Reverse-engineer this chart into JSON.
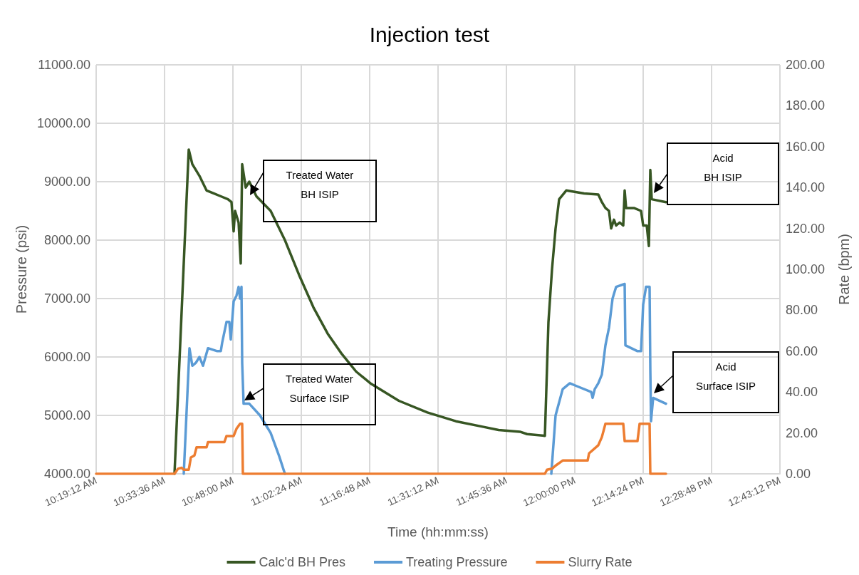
{
  "chart_data": {
    "type": "line",
    "title": "Injection test",
    "xlabel": "Time (hh:mm:ss)",
    "ylabel": "Pressure (psi)",
    "y2label": "Rate (bpm)",
    "xlim": [
      10.32,
      12.72
    ],
    "xticks": [
      {
        "value": 10.32,
        "label": "10:19:12 AM"
      },
      {
        "value": 10.56,
        "label": "10:33:36 AM"
      },
      {
        "value": 10.8,
        "label": "10:48:00 AM"
      },
      {
        "value": 11.04,
        "label": "11:02:24 AM"
      },
      {
        "value": 11.28,
        "label": "11:16:48 AM"
      },
      {
        "value": 11.52,
        "label": "11:31:12 AM"
      },
      {
        "value": 11.76,
        "label": "11:45:36 AM"
      },
      {
        "value": 12.0,
        "label": "12:00:00 PM"
      },
      {
        "value": 12.24,
        "label": "12:14:24 PM"
      },
      {
        "value": 12.48,
        "label": "12:28:48 PM"
      },
      {
        "value": 12.72,
        "label": "12:43:12 PM"
      }
    ],
    "ylim": [
      4000,
      11000
    ],
    "yticks": [
      {
        "value": 4000,
        "label": "4000.00"
      },
      {
        "value": 5000,
        "label": "5000.00"
      },
      {
        "value": 6000,
        "label": "6000.00"
      },
      {
        "value": 7000,
        "label": "7000.00"
      },
      {
        "value": 8000,
        "label": "8000.00"
      },
      {
        "value": 9000,
        "label": "9000.00"
      },
      {
        "value": 10000,
        "label": "10000.00"
      },
      {
        "value": 11000,
        "label": "11000.00"
      }
    ],
    "y2lim": [
      0,
      200
    ],
    "y2ticks": [
      {
        "value": 0,
        "label": "0.00"
      },
      {
        "value": 20,
        "label": "20.00"
      },
      {
        "value": 40,
        "label": "40.00"
      },
      {
        "value": 60,
        "label": "60.00"
      },
      {
        "value": 80,
        "label": "80.00"
      },
      {
        "value": 100,
        "label": "100.00"
      },
      {
        "value": 120,
        "label": "120.00"
      },
      {
        "value": 140,
        "label": "140.00"
      },
      {
        "value": 160,
        "label": "160.00"
      },
      {
        "value": 180,
        "label": "180.00"
      },
      {
        "value": 200,
        "label": "200.00"
      }
    ],
    "grid": true,
    "legend": "bottom",
    "marker": "none",
    "line_style": "solid",
    "series": [
      {
        "name": "Calc'd BH Pres",
        "color": "#375623",
        "x": [
          10.595,
          10.645,
          10.6575,
          10.6825,
          10.7075,
          10.7325,
          10.7575,
          10.7825,
          10.795,
          10.8025,
          10.8075,
          10.82,
          10.8275,
          10.8325,
          10.845,
          10.8575,
          10.8825,
          10.9325,
          10.9825,
          11.0325,
          11.0825,
          11.1325,
          11.1825,
          11.2325,
          11.2825,
          11.3825,
          11.4825,
          11.5825,
          11.6825,
          11.7325,
          11.8075,
          11.8325,
          11.895,
          11.9075,
          11.92,
          11.9325,
          11.945,
          11.97,
          12.0325,
          12.0825,
          12.095,
          12.1075,
          12.12,
          12.1275,
          12.1375,
          12.145,
          12.1575,
          12.17,
          12.175,
          12.18,
          12.2075,
          12.2325,
          12.24,
          12.2525,
          12.26,
          12.265,
          12.27,
          12.32
        ],
        "values": [
          4000,
          9550,
          9300,
          9100,
          8850,
          8800,
          8750,
          8700,
          8650,
          8150,
          8500,
          8300,
          7600,
          9300,
          8900,
          9000,
          8750,
          8500,
          8000,
          7400,
          6850,
          6400,
          6050,
          5750,
          5550,
          5250,
          5050,
          4900,
          4800,
          4750,
          4720,
          4680,
          4650,
          6600,
          7500,
          8200,
          8700,
          8850,
          8800,
          8780,
          8650,
          8550,
          8500,
          8200,
          8350,
          8250,
          8300,
          8250,
          8850,
          8550,
          8550,
          8500,
          8250,
          8250,
          7900,
          9200,
          8700,
          8650
        ]
      },
      {
        "name": "Treating Pressure",
        "color": "#5b9bd5",
        "x": [
          10.6275,
          10.6475,
          10.6575,
          10.67,
          10.6825,
          10.695,
          10.7125,
          10.745,
          10.7575,
          10.7625,
          10.7775,
          10.7875,
          10.7925,
          10.8025,
          10.8125,
          10.82,
          10.825,
          10.83,
          10.8325,
          10.8375,
          10.8575,
          10.895,
          10.9325,
          10.9625,
          10.9825,
          11.5,
          11.9175,
          11.9325,
          11.9575,
          11.9825,
          12.0075,
          12.0575,
          12.0625,
          12.07,
          12.0825,
          12.095,
          12.1075,
          12.12,
          12.1325,
          12.145,
          12.175,
          12.1775,
          12.22,
          12.2325,
          12.24,
          12.25,
          12.2625,
          12.265,
          12.2675,
          12.275,
          12.32
        ],
        "values": [
          4000,
          6150,
          5850,
          5900,
          6000,
          5850,
          6150,
          6100,
          6100,
          6250,
          6600,
          6600,
          6300,
          6950,
          7050,
          7200,
          7000,
          7200,
          5900,
          5200,
          5200,
          5000,
          4700,
          4300,
          4000,
          null,
          4000,
          5000,
          5450,
          5550,
          5500,
          5400,
          5300,
          5450,
          5550,
          5700,
          6200,
          6500,
          7000,
          7200,
          7250,
          6200,
          6100,
          6100,
          6900,
          7200,
          7200,
          5800,
          4900,
          5300,
          5200
        ]
      },
      {
        "name": "Slurry Rate",
        "color": "#ed7d31",
        "axis": "y2",
        "x": [
          10.32,
          10.595,
          10.6075,
          10.62,
          10.6275,
          10.645,
          10.6525,
          10.665,
          10.6725,
          10.7075,
          10.7125,
          10.77,
          10.7775,
          10.8025,
          10.8125,
          10.825,
          10.8325,
          10.835,
          11.895,
          11.9025,
          11.92,
          11.9325,
          11.9575,
          12.045,
          12.05,
          12.0825,
          12.095,
          12.1075,
          12.17,
          12.175,
          12.22,
          12.2275,
          12.2625,
          12.265,
          12.32
        ],
        "values": [
          0,
          0,
          2.5,
          3,
          2,
          2,
          8,
          9,
          13,
          13,
          15.5,
          15.5,
          18.5,
          18.5,
          22,
          24.5,
          24.5,
          0,
          0,
          2,
          2.5,
          4,
          6.5,
          6.5,
          10,
          14,
          18,
          24.5,
          24.5,
          16,
          16,
          24.5,
          24.5,
          0,
          0
        ]
      }
    ],
    "annotations": [
      "Treated Water\nBH ISIP",
      "Treated Water\nSurface ISIP",
      "Acid\nBH ISIP",
      "Acid\nSurface ISIP"
    ]
  }
}
